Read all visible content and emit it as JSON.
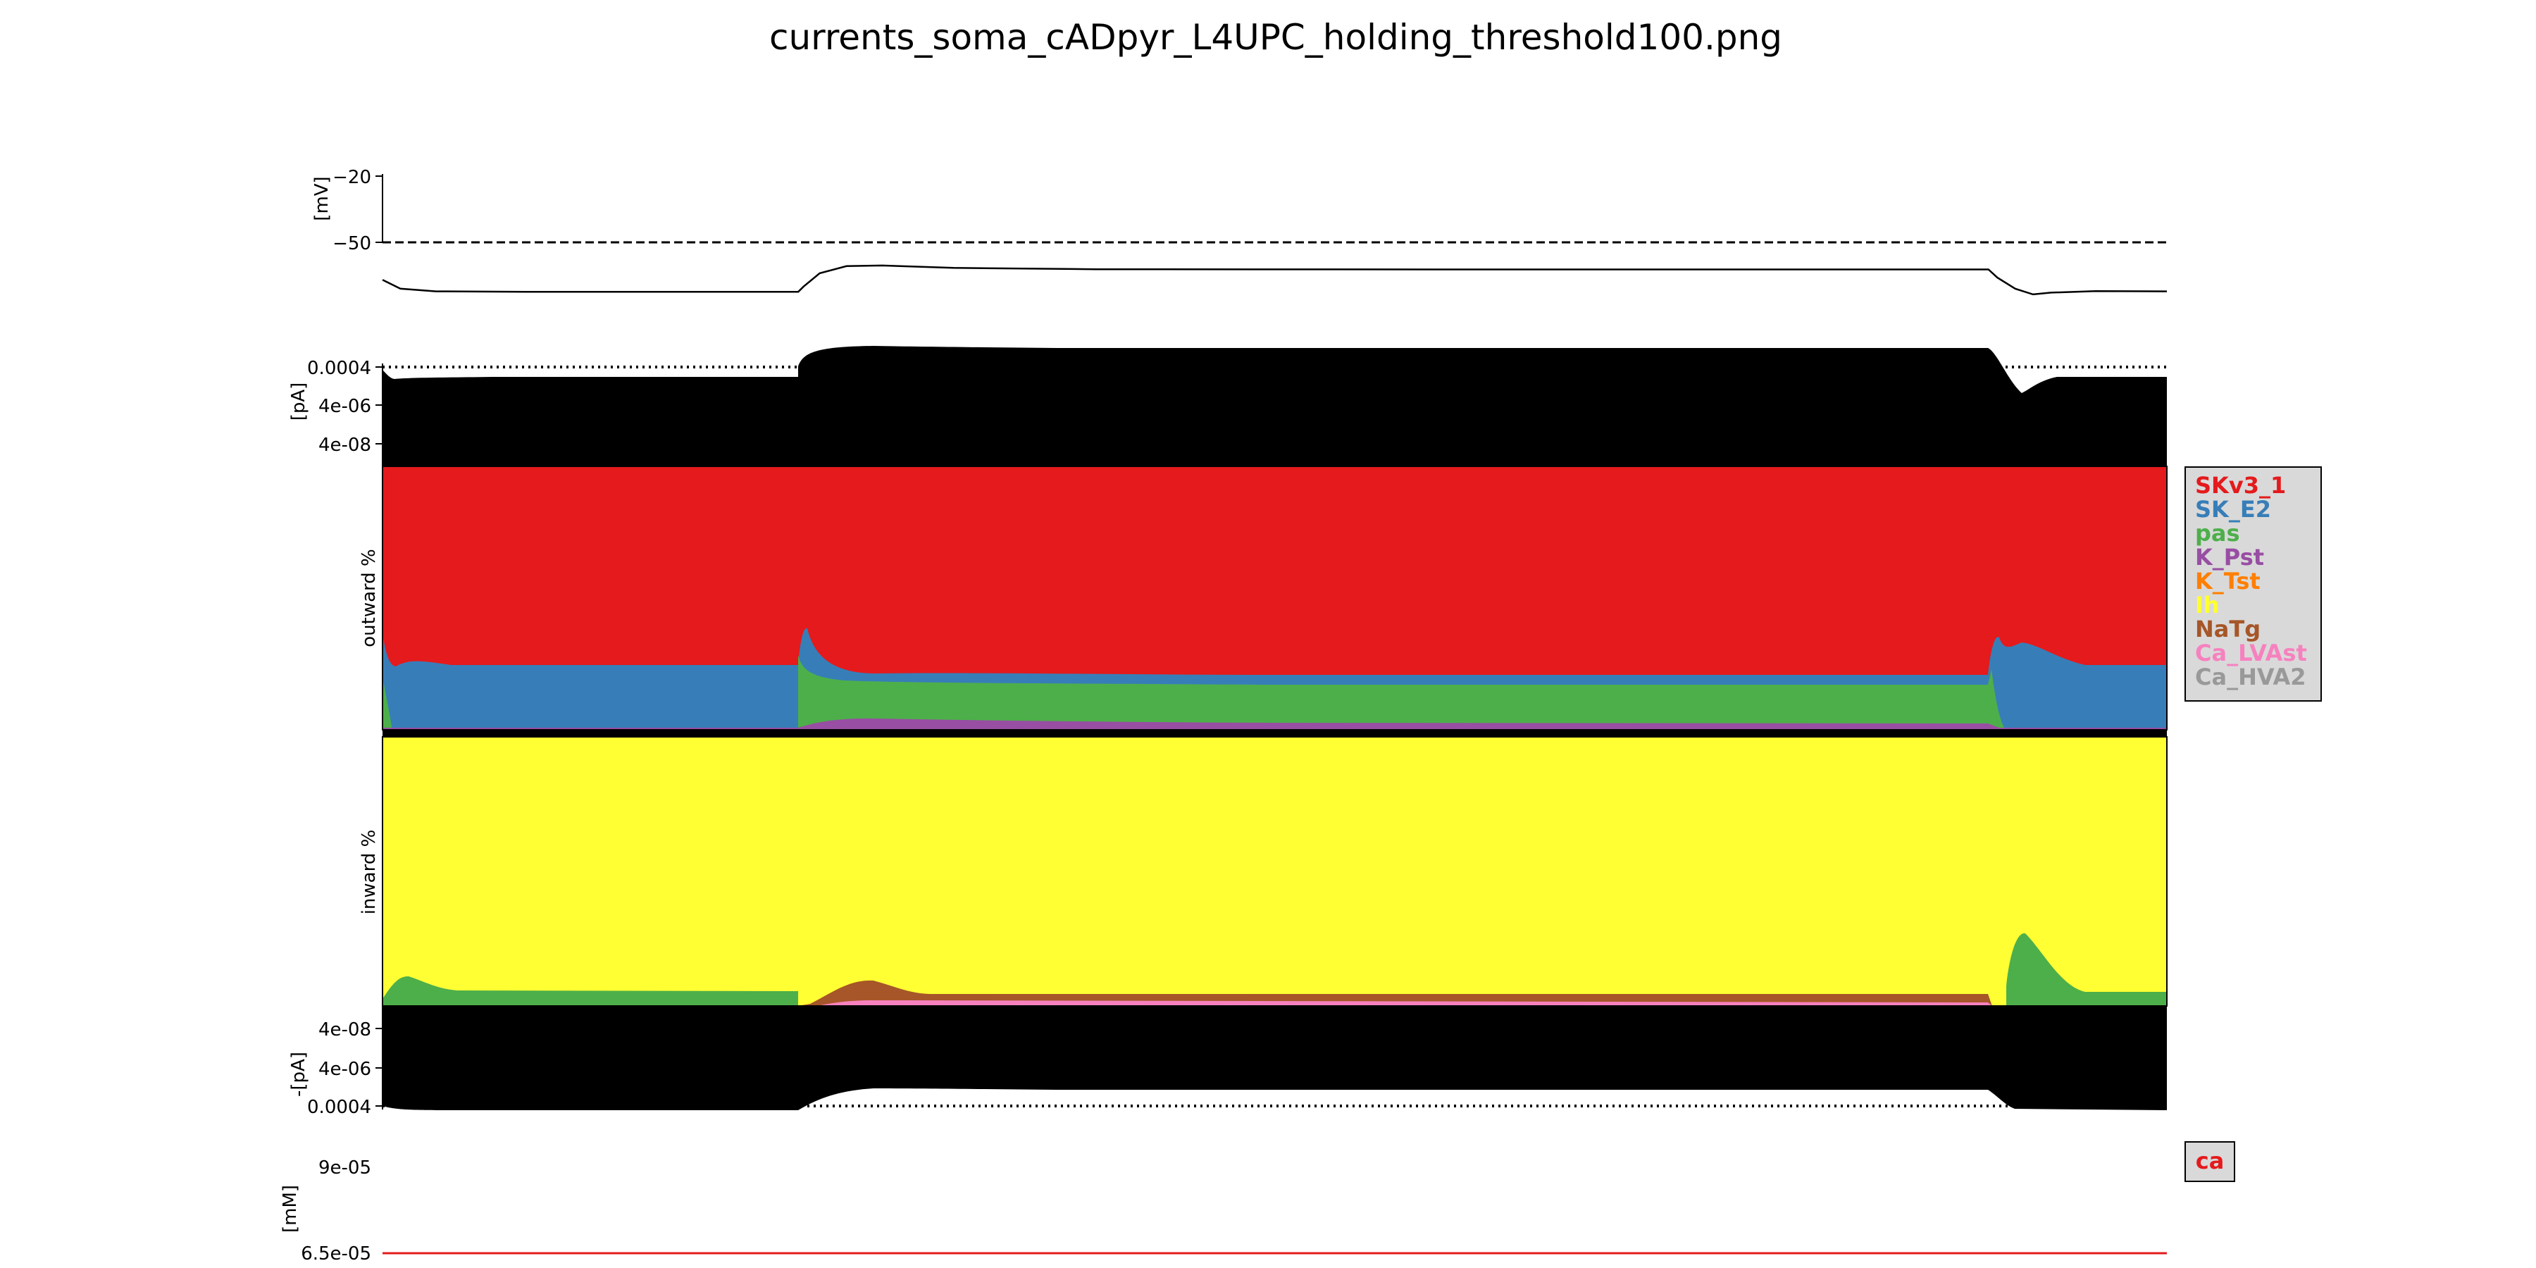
{
  "title": "currents_soma_cADpyr_L4UPC_holding_threshold100.png",
  "chart_data": [
    {
      "panel": "voltage",
      "type": "line",
      "ylabel": "[mV]",
      "y_ticks": [
        "−20",
        "−50"
      ],
      "reference_line": -50,
      "series": [
        {
          "values": [
            [
              0,
              -67
            ],
            [
              0.01,
              -71
            ],
            [
              0.03,
              -72.2
            ],
            [
              0.08,
              -72.4
            ],
            [
              0.233,
              -72.4
            ],
            [
              0.236,
              -70
            ],
            [
              0.245,
              -64
            ],
            [
              0.26,
              -60.8
            ],
            [
              0.28,
              -60.5
            ],
            [
              0.32,
              -61.6
            ],
            [
              0.4,
              -62.2
            ],
            [
              0.6,
              -62.3
            ],
            [
              0.9,
              -62.3
            ],
            [
              0.905,
              -66
            ],
            [
              0.915,
              -71
            ],
            [
              0.925,
              -73.6
            ],
            [
              0.935,
              -72.8
            ],
            [
              0.96,
              -72.1
            ],
            [
              1.0,
              -72.2
            ]
          ]
        }
      ]
    },
    {
      "panel": "outward_total",
      "type": "area",
      "ylabel": "[pA]",
      "y_ticks": [
        "0.0004",
        "4e-06",
        "4e-08"
      ],
      "y_scale": "log"
    },
    {
      "panel": "outward_percent",
      "type": "area",
      "ylabel": "outward %",
      "series": [
        {
          "name": "SKv3_1",
          "color": "#e41a1c"
        },
        {
          "name": "SK_E2",
          "color": "#377eb8"
        },
        {
          "name": "pas",
          "color": "#4daf4a"
        },
        {
          "name": "K_Pst",
          "color": "#984ea3"
        },
        {
          "name": "K_Tst",
          "color": "#ff7f00"
        }
      ]
    },
    {
      "panel": "inward_percent",
      "type": "area",
      "ylabel": "inward %",
      "series": [
        {
          "name": "Ih",
          "color": "#ffff33"
        },
        {
          "name": "NaTg",
          "color": "#a65628"
        },
        {
          "name": "Ca_LVAst",
          "color": "#f781bf"
        },
        {
          "name": "Ca_HVA2",
          "color": "#999999"
        },
        {
          "name": "pas",
          "color": "#4daf4a"
        }
      ]
    },
    {
      "panel": "inward_total",
      "type": "area",
      "ylabel": "-[pA]",
      "y_ticks": [
        "4e-08",
        "4e-06",
        "0.0004"
      ],
      "y_scale": "log"
    },
    {
      "panel": "calcium",
      "type": "line",
      "ylabel": "[mM]",
      "y_ticks": [
        "9e-05",
        "6.5e-05"
      ],
      "series": [
        {
          "name": "ca",
          "color": "#e41a1c",
          "values": [
            [
              0,
              6.5e-05
            ],
            [
              1,
              6.5e-05
            ]
          ]
        }
      ]
    }
  ],
  "legend": {
    "items": [
      {
        "label": "SKv3_1",
        "color": "#e41a1c"
      },
      {
        "label": "SK_E2",
        "color": "#377eb8"
      },
      {
        "label": "pas",
        "color": "#4daf4a"
      },
      {
        "label": "K_Pst",
        "color": "#984ea3"
      },
      {
        "label": "K_Tst",
        "color": "#ff7f00"
      },
      {
        "label": "Ih",
        "color": "#ffff33"
      },
      {
        "label": "NaTg",
        "color": "#a65628"
      },
      {
        "label": "Ca_LVAst",
        "color": "#f781bf"
      },
      {
        "label": "Ca_HVA2",
        "color": "#999999"
      }
    ],
    "placement": "right"
  },
  "ca_legend": {
    "label": "ca",
    "color": "#e41a1c",
    "placement": "right"
  }
}
